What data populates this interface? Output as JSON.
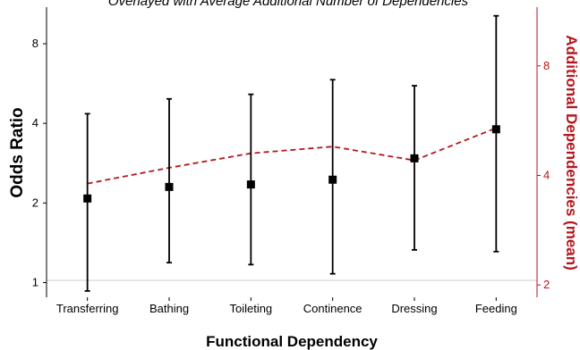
{
  "chart_data": {
    "type": "errorbar-with-line",
    "subtitle": "Overlayed with Average Additional Number of Dependencies",
    "xlabel": "Functional Dependency",
    "ylabel": "Odds Ratio",
    "y2label": "Additional Dependencies (mean)",
    "categories": [
      "Transferring",
      "Bathing",
      "Toileting",
      "Continence",
      "Dressing",
      "Feeding"
    ],
    "yscale": "log2",
    "ylim": [
      0.88,
      11
    ],
    "yticks": [
      "1",
      "2",
      "4",
      "8"
    ],
    "reference_line": 1,
    "y2scale": "log2",
    "y2lim": [
      1.85,
      11.6
    ],
    "y2ticks": [
      "2",
      "4",
      "8"
    ],
    "series": [
      {
        "name": "Odds Ratio",
        "mark": "square",
        "values": [
          2.08,
          2.3,
          2.35,
          2.45,
          2.95,
          3.8
        ],
        "ci_lower": [
          0.93,
          1.19,
          1.17,
          1.08,
          1.33,
          1.31
        ],
        "ci_upper": [
          4.35,
          4.95,
          5.15,
          5.85,
          5.55,
          10.2
        ]
      },
      {
        "name": "Additional Dependencies (mean)",
        "mark": "dashed-line",
        "values": [
          3.8,
          4.2,
          4.6,
          4.8,
          4.4,
          5.4
        ]
      }
    ],
    "colors": {
      "primary": "#000000",
      "secondary": "#b5171e",
      "grid": "#cccccc"
    },
    "grid": false
  }
}
